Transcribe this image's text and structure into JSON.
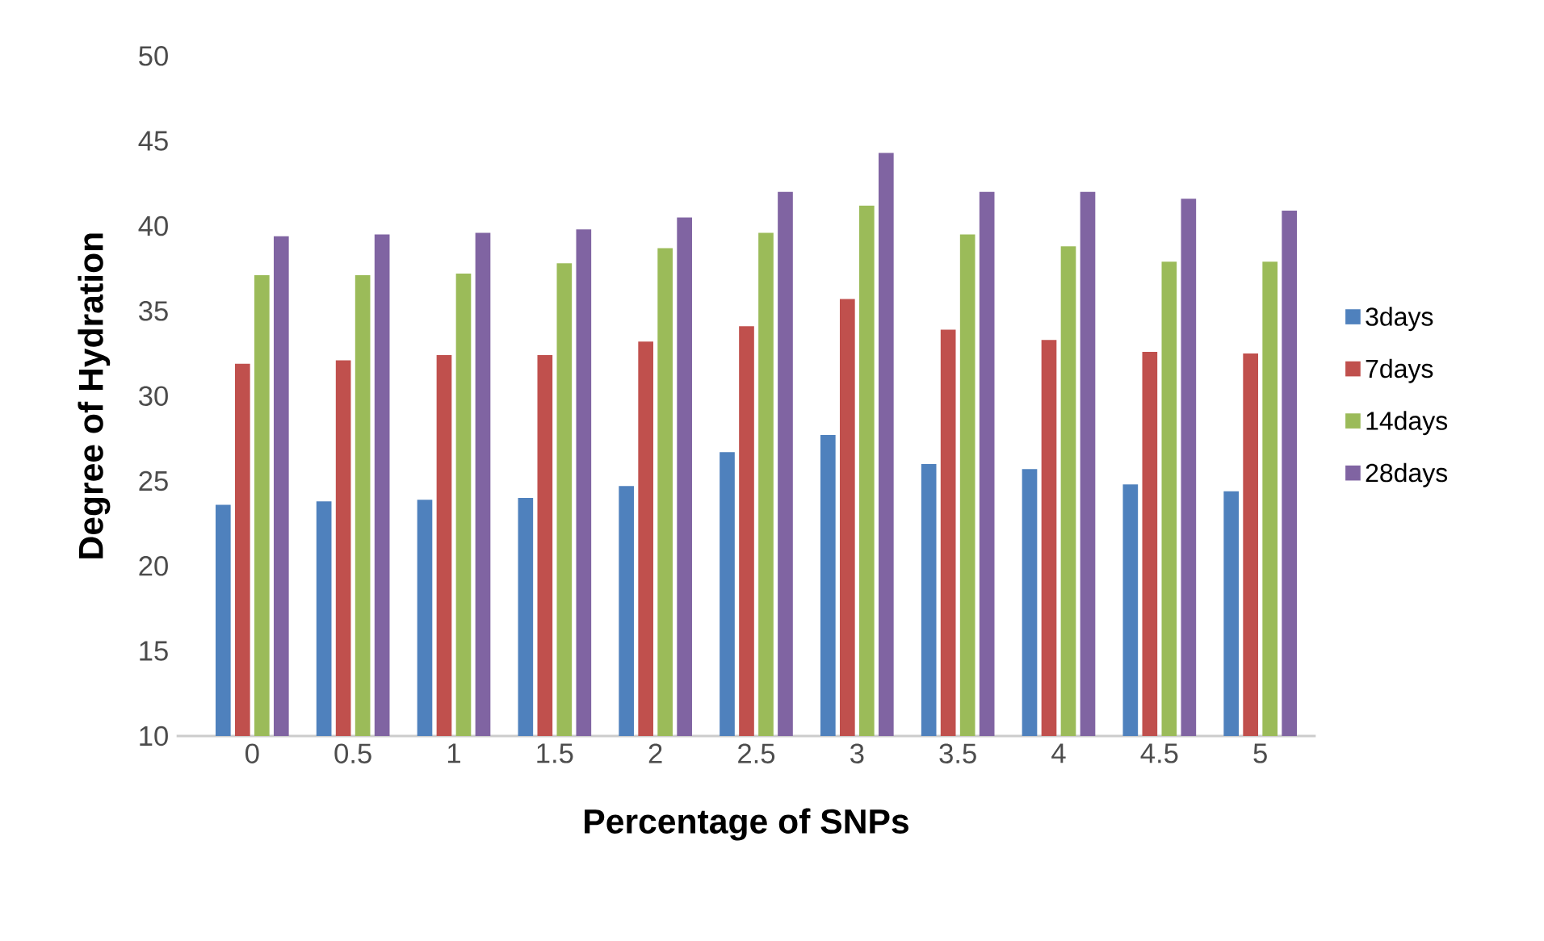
{
  "chart_data": {
    "type": "bar",
    "xlabel": "Percentage of SNPs",
    "ylabel": "Degree of Hydration",
    "categories": [
      "0",
      "0.5",
      "1",
      "1.5",
      "2",
      "2.5",
      "3",
      "3.5",
      "4",
      "4.5",
      "5"
    ],
    "series": [
      {
        "name": "3days",
        "color": "#4f81bd",
        "values": [
          23.6,
          23.8,
          23.9,
          24.0,
          24.7,
          26.7,
          27.7,
          26.0,
          25.7,
          24.8,
          24.4
        ]
      },
      {
        "name": "7days",
        "color": "#c0504d",
        "values": [
          31.9,
          32.1,
          32.4,
          32.4,
          33.2,
          34.1,
          35.7,
          33.9,
          33.3,
          32.6,
          32.5
        ]
      },
      {
        "name": "14days",
        "color": "#9bbb59",
        "values": [
          37.1,
          37.1,
          37.2,
          37.8,
          38.7,
          39.6,
          41.2,
          39.5,
          38.8,
          37.9,
          37.9
        ]
      },
      {
        "name": "28days",
        "color": "#8064a2",
        "values": [
          39.4,
          39.5,
          39.6,
          39.8,
          40.5,
          42.0,
          44.3,
          42.0,
          42.0,
          41.6,
          40.9
        ]
      }
    ],
    "ylim": [
      10,
      50
    ],
    "yticks": [
      10,
      15,
      20,
      25,
      30,
      35,
      40,
      45,
      50
    ],
    "grid": false,
    "legend": "right"
  }
}
